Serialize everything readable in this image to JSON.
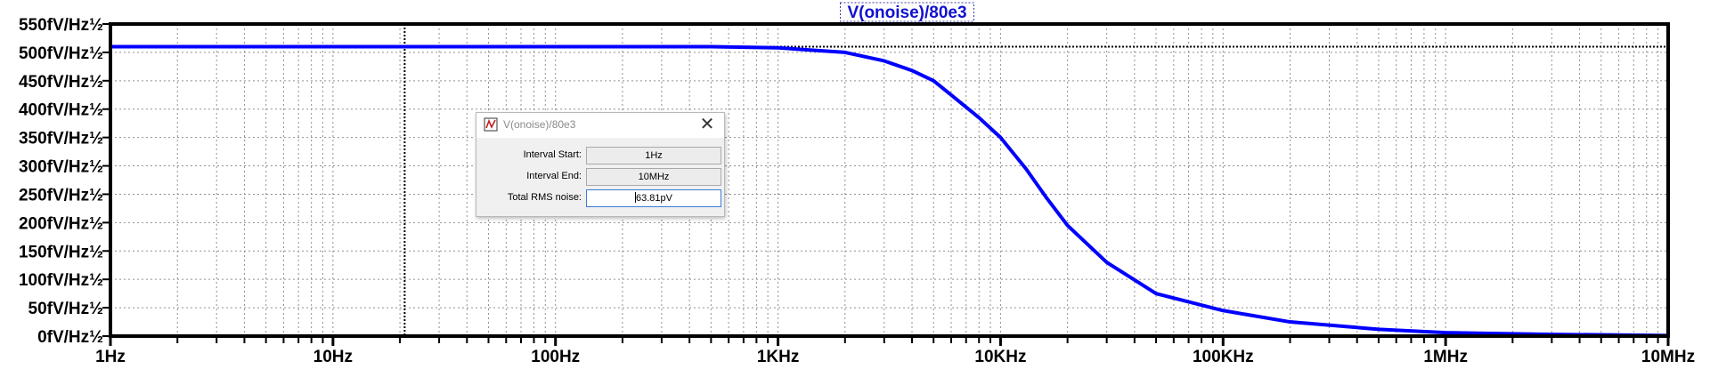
{
  "chart_data": {
    "type": "line",
    "title": "V(onoise)/80e3",
    "x_scale": "log",
    "xlim": [
      "1Hz",
      "10MHz"
    ],
    "y_unit": "fV/Hz½",
    "ylim": [
      0,
      550
    ],
    "y_ticks": [
      "0fV/Hz½",
      "50fV/Hz½",
      "100fV/Hz½",
      "150fV/Hz½",
      "200fV/Hz½",
      "250fV/Hz½",
      "300fV/Hz½",
      "350fV/Hz½",
      "400fV/Hz½",
      "450fV/Hz½",
      "500fV/Hz½",
      "550fV/Hz½"
    ],
    "x_ticks": [
      "1Hz",
      "10Hz",
      "100Hz",
      "1KHz",
      "10KHz",
      "100KHz",
      "1MHz",
      "10MHz"
    ],
    "grid": true,
    "cursor_frequency_hz": 21,
    "reference_level": 510,
    "series": [
      {
        "name": "V(onoise)/80e3",
        "color": "#0000ff",
        "x": [
          1,
          10,
          100,
          500,
          1000,
          2000,
          3000,
          4000,
          5000,
          6000,
          8000,
          10000,
          13000,
          16000,
          20000,
          30000,
          50000,
          100000,
          200000,
          500000,
          1000000,
          3000000,
          10000000
        ],
        "y": [
          510,
          510,
          510,
          510,
          508,
          500,
          485,
          468,
          450,
          425,
          385,
          350,
          295,
          245,
          195,
          130,
          75,
          45,
          25,
          12,
          6,
          3,
          1
        ]
      }
    ]
  },
  "dialog": {
    "title": "V(onoise)/80e3",
    "close_label": "✕",
    "interval_start_label": "Interval Start:",
    "interval_start_value": "1Hz",
    "interval_end_label": "Interval End:",
    "interval_end_value": "10MHz",
    "rms_label": "Total RMS noise:",
    "rms_value": "63.81pV"
  },
  "colors": {
    "trace": "#0000ff",
    "title": "#1010d0",
    "grid": "#909090",
    "frame": "#000000"
  }
}
